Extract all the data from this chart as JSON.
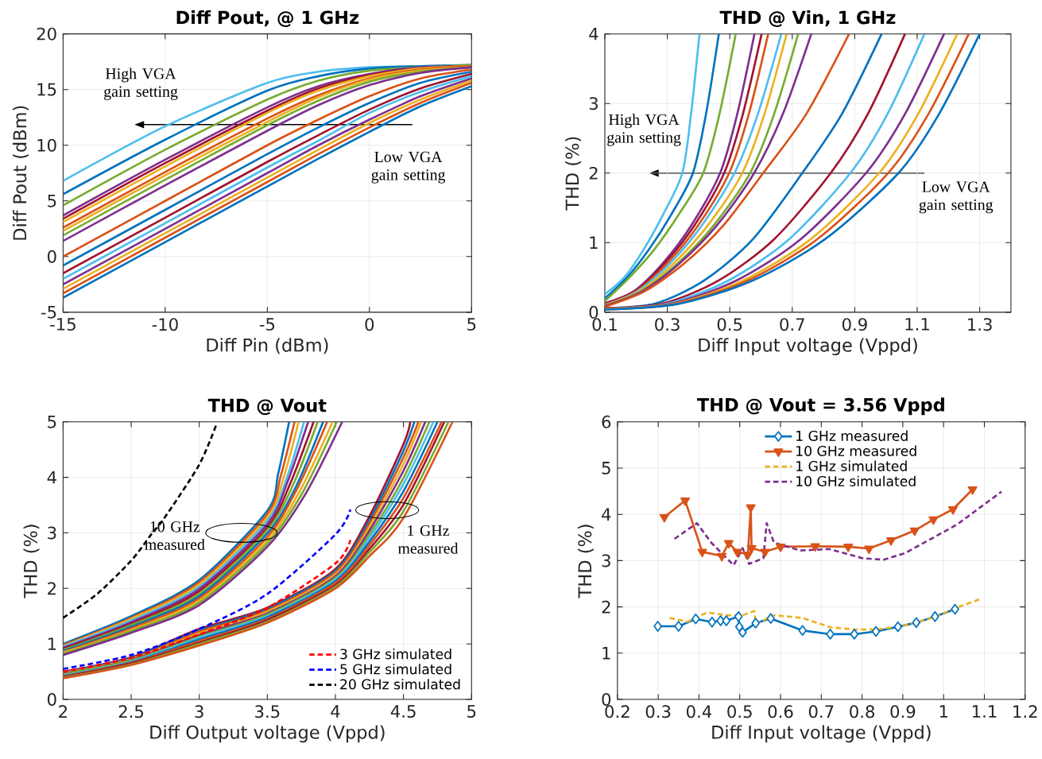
{
  "chart_data": [
    {
      "type": "line",
      "title": "Diff Pout, @ 1 GHz",
      "xlabel": "Diff Pin (dBm)",
      "ylabel": "Diff Pout (dBm)",
      "xlim": [
        -15,
        5
      ],
      "ylim": [
        -5,
        20
      ],
      "xticks": [
        -15,
        -10,
        -5,
        0,
        5
      ],
      "yticks": [
        -5,
        0,
        5,
        10,
        15,
        20
      ],
      "grid": true,
      "annotations": [
        "High VGA gain setting",
        "Low VGA gain setting"
      ],
      "x": [
        -15,
        -10,
        -5,
        -2.5,
        0,
        2.5,
        5
      ],
      "series": [
        {
          "color": "#4dbeee",
          "values": [
            6.8,
            11.7,
            15.6,
            16.6,
            17.0,
            17.1,
            17.2
          ]
        },
        {
          "color": "#0072bd",
          "values": [
            5.6,
            10.5,
            14.9,
            16.2,
            16.9,
            17.1,
            17.2
          ]
        },
        {
          "color": "#77ac30",
          "values": [
            4.6,
            9.6,
            14.1,
            15.8,
            16.7,
            17.0,
            17.2
          ]
        },
        {
          "color": "#7e2f8e",
          "values": [
            3.7,
            8.7,
            13.4,
            15.3,
            16.4,
            17.0,
            17.1
          ]
        },
        {
          "color": "#a2142f",
          "values": [
            3.4,
            8.4,
            13.1,
            15.1,
            16.3,
            16.9,
            17.1
          ]
        },
        {
          "color": "#edb120",
          "values": [
            3.1,
            8.1,
            12.9,
            14.9,
            16.2,
            16.9,
            17.1
          ]
        },
        {
          "color": "#d95319",
          "values": [
            2.6,
            7.6,
            12.4,
            14.5,
            16.0,
            16.8,
            17.1
          ]
        },
        {
          "color": "#edb120",
          "values": [
            2.3,
            7.3,
            12.1,
            14.3,
            15.9,
            16.7,
            17.0
          ]
        },
        {
          "color": "#77ac30",
          "values": [
            1.9,
            6.9,
            11.8,
            14.0,
            15.7,
            16.6,
            17.0
          ]
        },
        {
          "color": "#7e2f8e",
          "values": [
            1.4,
            6.4,
            11.3,
            13.6,
            15.4,
            16.5,
            17.0
          ]
        },
        {
          "color": "#d95319",
          "values": [
            0,
            5.0,
            10.0,
            12.3,
            14.4,
            16.0,
            16.8
          ]
        },
        {
          "color": "#0072bd",
          "values": [
            -0.8,
            4.2,
            9.2,
            11.6,
            13.8,
            15.6,
            16.6
          ]
        },
        {
          "color": "#a2142f",
          "values": [
            -1.5,
            3.5,
            8.5,
            10.9,
            13.2,
            15.1,
            16.4
          ]
        },
        {
          "color": "#4dbeee",
          "values": [
            -2,
            3.0,
            8.0,
            10.4,
            12.9,
            14.8,
            16.2
          ]
        },
        {
          "color": "#7e2f8e",
          "values": [
            -2.5,
            2.5,
            7.5,
            10.0,
            12.3,
            14.4,
            16.0
          ]
        },
        {
          "color": "#edb120",
          "values": [
            -2.9,
            2.1,
            7.1,
            9.6,
            12.0,
            14.1,
            15.8
          ]
        },
        {
          "color": "#d95319",
          "values": [
            -3.3,
            1.7,
            6.7,
            9.2,
            11.6,
            13.8,
            15.6
          ]
        },
        {
          "color": "#0072bd",
          "values": [
            -3.7,
            1.3,
            6.3,
            8.8,
            11.2,
            13.5,
            15.3
          ]
        }
      ]
    },
    {
      "type": "line",
      "title": "THD @ Vin, 1 GHz",
      "xlabel": "Diff Input voltage (Vppd)",
      "ylabel": "THD (%)",
      "xlim": [
        0.1,
        1.4
      ],
      "ylim": [
        0,
        4
      ],
      "xticks": [
        0.1,
        0.3,
        0.5,
        0.7,
        0.9,
        1.1,
        1.3
      ],
      "yticks": [
        0,
        1,
        2,
        3,
        4
      ],
      "grid": true,
      "annotations": [
        "High VGA gain setting",
        "Low VGA gain setting"
      ],
      "series": [
        {
          "color": "#4dbeee",
          "x": [
            0.1,
            0.162,
            0.224,
            0.286,
            0.348,
            0.376,
            0.403
          ],
          "values": [
            0.26,
            0.5,
            0.9,
            1.4,
            2,
            2.85,
            4
          ]
        },
        {
          "color": "#0072bd",
          "x": [
            0.1,
            0.171,
            0.241,
            0.312,
            0.382,
            0.424,
            0.465
          ],
          "values": [
            0.2,
            0.5,
            0.9,
            1.4,
            2,
            2.85,
            4
          ]
        },
        {
          "color": "#77ac30",
          "x": [
            0.1,
            0.179,
            0.258,
            0.336,
            0.415,
            0.467,
            0.519
          ],
          "values": [
            0.16,
            0.5,
            0.9,
            1.4,
            2,
            2.85,
            4
          ]
        },
        {
          "color": "#7e2f8e",
          "x": [
            0.1,
            0.192,
            0.285,
            0.377,
            0.469,
            0.524,
            0.579
          ],
          "values": [
            0.13,
            0.3,
            0.7,
            1.25,
            2,
            2.85,
            4
          ]
        },
        {
          "color": "#a2142f",
          "x": [
            0.1,
            0.196,
            0.291,
            0.387,
            0.482,
            0.542,
            0.602
          ],
          "values": [
            0.12,
            0.3,
            0.7,
            1.25,
            2,
            2.85,
            4
          ]
        },
        {
          "color": "#d95319",
          "x": [
            0.1,
            0.2,
            0.299,
            0.399,
            0.498,
            0.561,
            0.623
          ],
          "values": [
            0.11,
            0.3,
            0.7,
            1.25,
            2,
            2.85,
            4
          ]
        },
        {
          "color": "#4dbeee",
          "x": [
            0.1,
            0.204,
            0.308,
            0.411,
            0.515,
            0.59,
            0.665
          ],
          "values": [
            0.1,
            0.3,
            0.7,
            1.25,
            2,
            2.85,
            4
          ]
        },
        {
          "color": "#edb120",
          "x": [
            0.1,
            0.21,
            0.32,
            0.43,
            0.54,
            0.611,
            0.682
          ],
          "values": [
            0.1,
            0.3,
            0.7,
            1.25,
            2,
            2.85,
            4
          ]
        },
        {
          "color": "#77ac30",
          "x": [
            0.1,
            0.216,
            0.333,
            0.449,
            0.565,
            0.642,
            0.719
          ],
          "values": [
            0.09,
            0.3,
            0.7,
            1.25,
            2,
            2.85,
            4
          ]
        },
        {
          "color": "#7e2f8e",
          "x": [
            0.1,
            0.22,
            0.339,
            0.459,
            0.578,
            0.67,
            0.761
          ],
          "values": [
            0.09,
            0.3,
            0.7,
            1.25,
            2,
            2.85,
            4
          ]
        },
        {
          "color": "#d95319",
          "x": [
            0.1,
            0.227,
            0.354,
            0.48,
            0.607,
            0.745,
            0.882
          ],
          "values": [
            0.08,
            0.3,
            0.7,
            1.25,
            2,
            2.85,
            4
          ]
        },
        {
          "color": "#0072bd",
          "x": [
            0.1,
            0.258,
            0.416,
            0.574,
            0.732,
            0.859,
            0.986
          ],
          "values": [
            0.06,
            0.12,
            0.45,
            1.05,
            2,
            2.85,
            4
          ]
        },
        {
          "color": "#a2142f",
          "x": [
            0.1,
            0.281,
            0.462,
            0.642,
            0.823,
            0.942,
            1.061
          ],
          "values": [
            0.06,
            0.12,
            0.45,
            1.05,
            2,
            2.85,
            4
          ]
        },
        {
          "color": "#4dbeee",
          "x": [
            0.1,
            0.297,
            0.493,
            0.69,
            0.886,
            1.005,
            1.123
          ],
          "values": [
            0.05,
            0.12,
            0.45,
            1.05,
            2,
            2.85,
            4
          ]
        },
        {
          "color": "#7e2f8e",
          "x": [
            0.1,
            0.309,
            0.518,
            0.727,
            0.936,
            1.061,
            1.186
          ],
          "values": [
            0.05,
            0.12,
            0.45,
            1.05,
            2,
            2.85,
            4
          ]
        },
        {
          "color": "#edb120",
          "x": [
            0.1,
            0.32,
            0.539,
            0.759,
            0.978,
            1.103,
            1.228
          ],
          "values": [
            0.05,
            0.12,
            0.45,
            1.05,
            2,
            2.85,
            4
          ]
        },
        {
          "color": "#d95319",
          "x": [
            0.1,
            0.327,
            0.554,
            0.78,
            1.007,
            1.136,
            1.265
          ],
          "values": [
            0.04,
            0.12,
            0.45,
            1.05,
            2,
            2.85,
            4
          ]
        },
        {
          "color": "#0072bd",
          "x": [
            0.1,
            0.335,
            0.57,
            0.805,
            1.04,
            1.17,
            1.3
          ],
          "values": [
            0.04,
            0.12,
            0.45,
            1.05,
            2,
            2.85,
            4
          ]
        }
      ]
    },
    {
      "type": "line",
      "title": "THD @ Vout",
      "xlabel": "Diff Output voltage (Vppd)",
      "ylabel": "THD (%)",
      "xlim": [
        2,
        5
      ],
      "ylim": [
        0,
        5
      ],
      "xticks": [
        2,
        2.5,
        3,
        3.5,
        4,
        4.5,
        5
      ],
      "yticks": [
        0,
        1,
        2,
        3,
        4,
        5
      ],
      "grid": true,
      "legend": "bottom right",
      "annotations": [
        "10 GHz measured",
        "1 GHz measured"
      ],
      "series": [
        {
          "color": "#0072bd",
          "x": [
            2,
            2.5,
            3,
            3.5,
            3.58,
            3.66
          ],
          "values": [
            1.0,
            1.5,
            2.15,
            3.4,
            4.07,
            5
          ]
        },
        {
          "color": "#d95319",
          "x": [
            2,
            2.5,
            3,
            3.5,
            3.6,
            3.7
          ],
          "values": [
            0.98,
            1.47,
            2.11,
            3.34,
            4.04,
            5
          ]
        },
        {
          "color": "#edb120",
          "x": [
            2,
            2.5,
            3,
            3.5,
            3.62,
            3.73
          ],
          "values": [
            0.96,
            1.45,
            2.07,
            3.28,
            4.0,
            5
          ]
        },
        {
          "color": "#4dbeee",
          "x": [
            2,
            2.5,
            3,
            3.5,
            3.64,
            3.77
          ],
          "values": [
            0.95,
            1.42,
            2.03,
            3.22,
            3.97,
            5
          ]
        },
        {
          "color": "#7e2f8e",
          "x": [
            2,
            2.5,
            3,
            3.5,
            3.65,
            3.8
          ],
          "values": [
            0.93,
            1.39,
            1.99,
            3.16,
            3.93,
            5
          ]
        },
        {
          "color": "#a2142f",
          "x": [
            2,
            2.5,
            3,
            3.5,
            3.67,
            3.84
          ],
          "values": [
            0.91,
            1.36,
            1.95,
            3.1,
            3.9,
            5
          ]
        },
        {
          "color": "#77ac30",
          "x": [
            2,
            2.5,
            3,
            3.5,
            3.69,
            3.87
          ],
          "values": [
            0.89,
            1.34,
            1.9,
            3.05,
            3.87,
            5
          ]
        },
        {
          "color": "#0072bd",
          "x": [
            2,
            2.5,
            3,
            3.5,
            3.71,
            3.91
          ],
          "values": [
            0.87,
            1.31,
            1.86,
            2.99,
            3.83,
            5
          ]
        },
        {
          "color": "#d95319",
          "x": [
            2,
            2.5,
            3,
            3.5,
            3.72,
            3.94
          ],
          "values": [
            0.85,
            1.28,
            1.82,
            2.93,
            3.8,
            5
          ]
        },
        {
          "color": "#edb120",
          "x": [
            2,
            2.5,
            3,
            3.5,
            3.74,
            3.98
          ],
          "values": [
            0.84,
            1.25,
            1.78,
            2.87,
            3.76,
            5
          ]
        },
        {
          "color": "#77ac30",
          "x": [
            2,
            2.5,
            3,
            3.5,
            3.76,
            4.01
          ],
          "values": [
            0.82,
            1.23,
            1.74,
            2.81,
            3.73,
            5
          ]
        },
        {
          "color": "#7e2f8e",
          "x": [
            2,
            2.5,
            3,
            3.5,
            3.78,
            4.05
          ],
          "values": [
            0.8,
            1.2,
            1.7,
            2.75,
            3.7,
            5
          ]
        },
        {
          "color": "#a2142f",
          "x": [
            2,
            2.5,
            3,
            3.5,
            4,
            4.25,
            4.5,
            4.55
          ],
          "values": [
            0.5,
            0.76,
            1.27,
            1.65,
            2.35,
            3.3,
            4.6,
            5
          ]
        },
        {
          "color": "#0072bd",
          "x": [
            2,
            2.5,
            3,
            3.5,
            4,
            4.25,
            4.5,
            4.58
          ],
          "values": [
            0.49,
            0.75,
            1.24,
            1.63,
            2.32,
            3.23,
            4.48,
            5
          ]
        },
        {
          "color": "#d95319",
          "x": [
            2,
            2.5,
            3,
            3.5,
            4,
            4.25,
            4.5,
            4.61
          ],
          "values": [
            0.48,
            0.73,
            1.22,
            1.6,
            2.29,
            3.17,
            4.36,
            5
          ]
        },
        {
          "color": "#edb120",
          "x": [
            2,
            2.5,
            3,
            3.5,
            4,
            4.25,
            4.5,
            4.63
          ],
          "values": [
            0.47,
            0.72,
            1.19,
            1.58,
            2.25,
            3.1,
            4.24,
            5
          ]
        },
        {
          "color": "#7e2f8e",
          "x": [
            2,
            2.5,
            3,
            3.5,
            4,
            4.25,
            4.5,
            4.66
          ],
          "values": [
            0.46,
            0.71,
            1.16,
            1.55,
            2.22,
            3.04,
            4.12,
            5
          ]
        },
        {
          "color": "#77ac30",
          "x": [
            2,
            2.5,
            3,
            3.5,
            4,
            4.25,
            4.5,
            4.69
          ],
          "values": [
            0.45,
            0.7,
            1.13,
            1.53,
            2.19,
            2.97,
            3.99,
            5
          ]
        },
        {
          "color": "#4dbeee",
          "x": [
            2,
            2.5,
            3,
            3.5,
            4,
            4.25,
            4.5,
            4.72
          ],
          "values": [
            0.43,
            0.68,
            1.11,
            1.5,
            2.16,
            2.91,
            3.88,
            5
          ]
        },
        {
          "color": "#0072bd",
          "x": [
            2,
            2.5,
            3,
            3.5,
            4,
            4.25,
            4.5,
            4.75
          ],
          "values": [
            0.42,
            0.67,
            1.08,
            1.48,
            2.13,
            2.84,
            3.75,
            5
          ]
        },
        {
          "color": "#d95319",
          "x": [
            2,
            2.5,
            3,
            3.5,
            4,
            4.25,
            4.5,
            4.78
          ],
          "values": [
            0.41,
            0.66,
            1.05,
            1.45,
            2.1,
            2.78,
            3.63,
            5
          ]
        },
        {
          "color": "#a2142f",
          "x": [
            2,
            2.5,
            3,
            3.5,
            4,
            4.25,
            4.5,
            4.8
          ],
          "values": [
            0.4,
            0.65,
            1.02,
            1.43,
            2.06,
            2.71,
            3.51,
            5
          ]
        },
        {
          "color": "#77ac30",
          "x": [
            2,
            2.5,
            3,
            3.5,
            4,
            4.25,
            4.5,
            4.83
          ],
          "values": [
            0.39,
            0.63,
            1.0,
            1.4,
            2.03,
            2.65,
            3.39,
            5
          ]
        },
        {
          "color": "#d95319",
          "x": [
            2,
            2.5,
            3,
            3.5,
            4,
            4.25,
            4.5,
            4.86
          ],
          "values": [
            0.38,
            0.62,
            0.97,
            1.38,
            2.0,
            2.58,
            3.27,
            5
          ]
        },
        {
          "name": "3 GHz simulated",
          "color": "#ff0000",
          "line_style": "dashed",
          "x": [
            2,
            2.5,
            3,
            3.5,
            4,
            4.11
          ],
          "values": [
            0.5,
            0.75,
            1.17,
            1.65,
            2.45,
            2.87
          ]
        },
        {
          "name": "5 GHz simulated",
          "color": "#0000ff",
          "line_style": "dashed",
          "x": [
            2,
            2.5,
            3,
            3.5,
            4,
            4.11
          ],
          "values": [
            0.55,
            0.8,
            1.27,
            1.9,
            2.97,
            3.42
          ]
        },
        {
          "name": "20 GHz simulated",
          "color": "#000000",
          "line_style": "dashed",
          "x": [
            2,
            2.25,
            2.5,
            2.65,
            2.75,
            3,
            3.13
          ],
          "values": [
            1.47,
            1.9,
            2.5,
            2.98,
            3.29,
            4.23,
            4.98
          ]
        }
      ]
    },
    {
      "type": "line",
      "title": "THD @ Vout = 3.56 Vppd",
      "xlabel": "Diff Input voltage (Vppd)",
      "ylabel": "THD (%)",
      "xlim": [
        0.2,
        1.2
      ],
      "ylim": [
        0,
        6
      ],
      "xticks": [
        0.2,
        0.3,
        0.4,
        0.5,
        0.6,
        0.7,
        0.8,
        0.9,
        1,
        1.1,
        1.2
      ],
      "yticks": [
        0,
        1,
        2,
        3,
        4,
        5,
        6
      ],
      "grid": true,
      "legend": "top",
      "series": [
        {
          "name": "1 GHz measured",
          "color": "#0072bd",
          "marker": "diamond",
          "line_style": "solid",
          "x": [
            0.299,
            0.35,
            0.392,
            0.432,
            0.453,
            0.467,
            0.497,
            0.499,
            0.507,
            0.539,
            0.576,
            0.654,
            0.722,
            0.781,
            0.834,
            0.888,
            0.933,
            0.979,
            1.028
          ],
          "values": [
            1.58,
            1.58,
            1.74,
            1.67,
            1.7,
            1.7,
            1.79,
            1.57,
            1.45,
            1.65,
            1.75,
            1.49,
            1.41,
            1.41,
            1.47,
            1.57,
            1.66,
            1.79,
            1.95
          ]
        },
        {
          "name": "10 GHz  measured",
          "color": "#d95319",
          "marker": "triangle",
          "line_style": "solid",
          "x": [
            0.315,
            0.366,
            0.408,
            0.456,
            0.473,
            0.494,
            0.52,
            0.527,
            0.529,
            0.562,
            0.6,
            0.685,
            0.766,
            0.817,
            0.871,
            0.929,
            0.975,
            1.023,
            1.071
          ],
          "values": [
            3.94,
            4.3,
            3.19,
            3.1,
            3.38,
            3.19,
            3.13,
            4.15,
            3.27,
            3.19,
            3.3,
            3.31,
            3.3,
            3.26,
            3.44,
            3.65,
            3.89,
            4.11,
            4.54
          ]
        },
        {
          "name": "1 GHz simulated",
          "color": "#edb120",
          "line_style": "dashed",
          "x": [
            0.328,
            0.372,
            0.42,
            0.468,
            0.507,
            0.536,
            0.539,
            0.584,
            0.654,
            0.722,
            0.783,
            0.834,
            0.888,
            0.933,
            0.979,
            1.028,
            1.087
          ],
          "values": [
            1.76,
            1.68,
            1.88,
            1.82,
            1.82,
            1.91,
            1.63,
            1.82,
            1.76,
            1.56,
            1.51,
            1.51,
            1.57,
            1.66,
            1.78,
            1.97,
            2.16
          ]
        },
        {
          "name": "10 GHz simulated",
          "color": "#7e2f8e",
          "line_style": "dashed",
          "x": [
            0.34,
            0.395,
            0.43,
            0.485,
            0.507,
            0.523,
            0.558,
            0.566,
            0.584,
            0.648,
            0.719,
            0.757,
            0.802,
            0.853,
            0.905,
            0.963,
            1.033,
            1.142
          ],
          "values": [
            3.47,
            3.81,
            3.39,
            2.9,
            3.27,
            2.93,
            3.05,
            3.81,
            3.39,
            3.22,
            3.25,
            3.16,
            3.05,
            3.02,
            3.16,
            3.44,
            3.78,
            4.49
          ]
        }
      ]
    }
  ]
}
